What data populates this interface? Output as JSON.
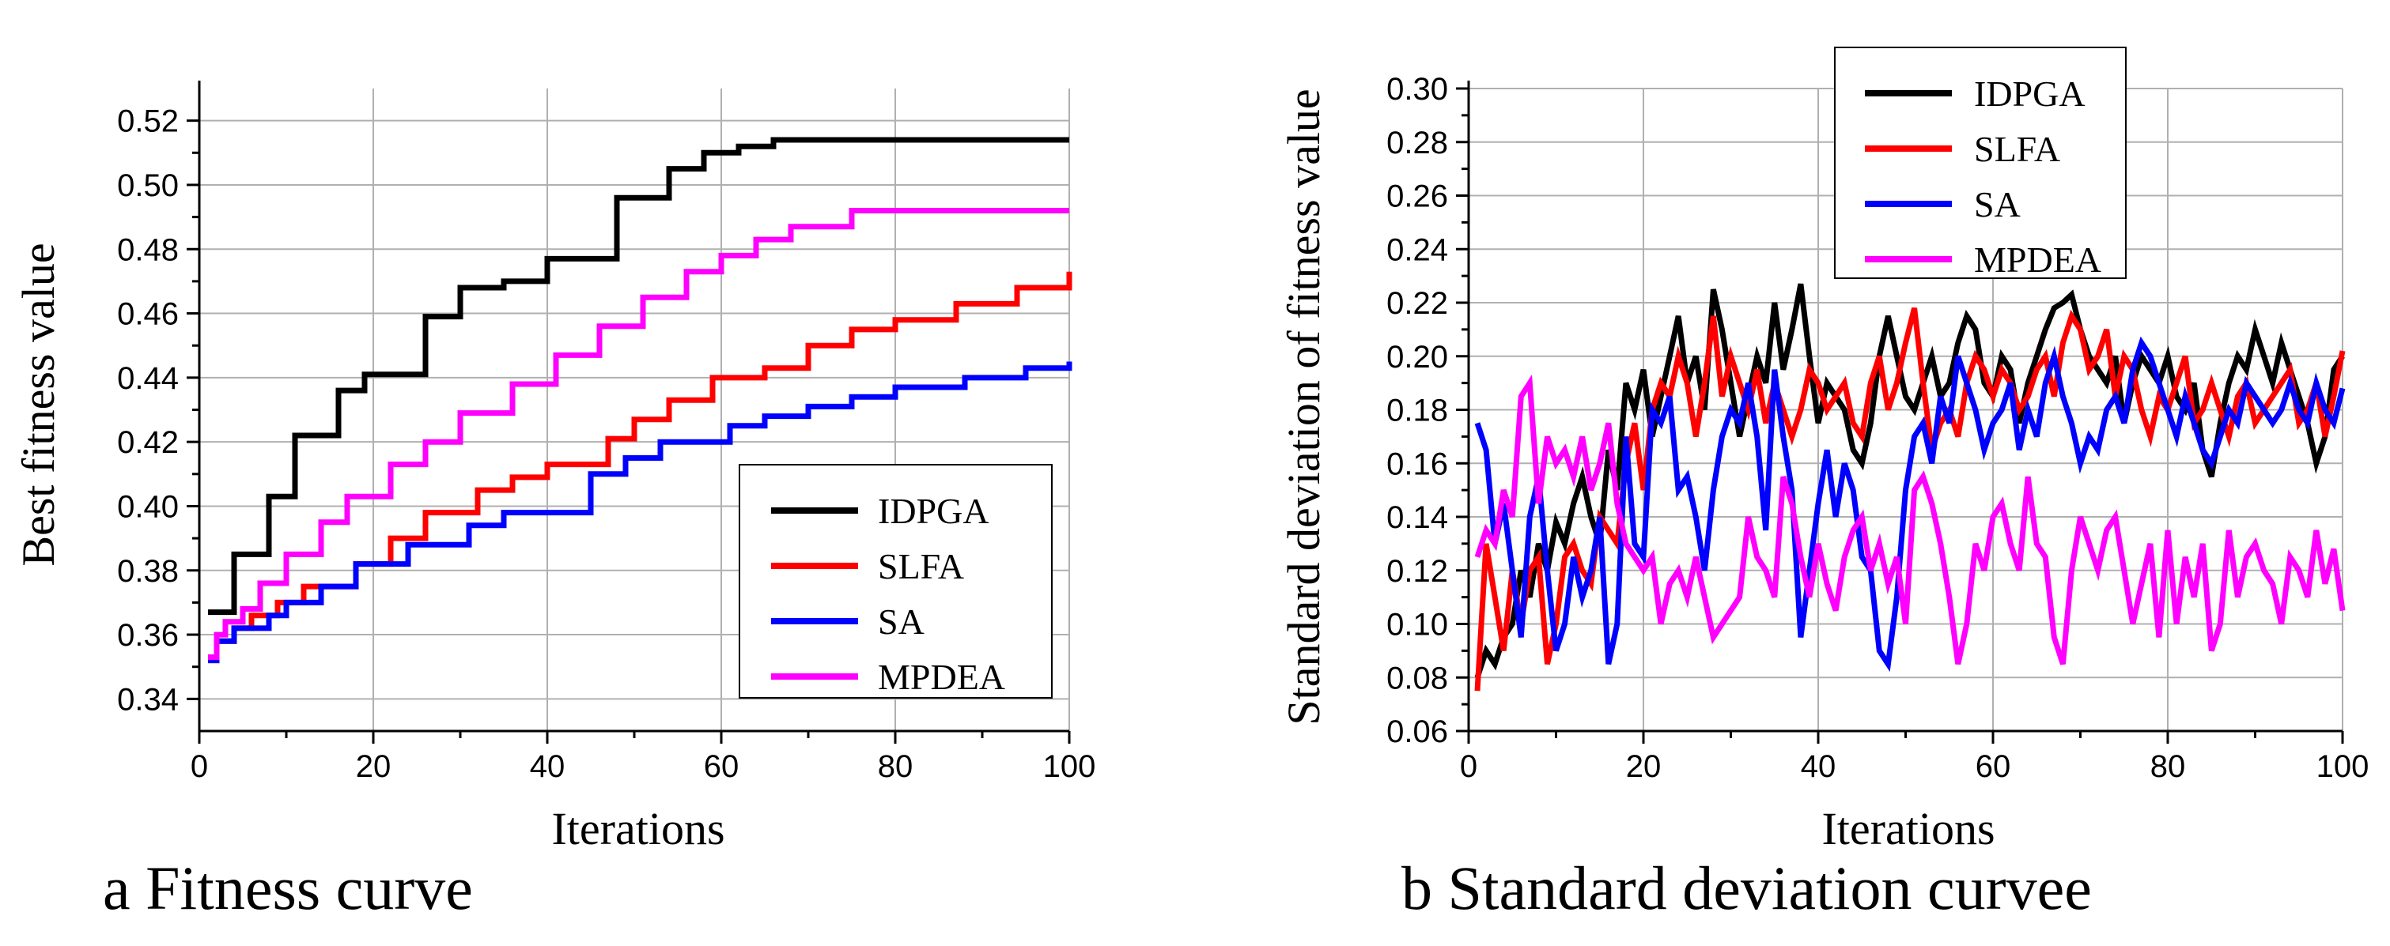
{
  "chart_data": [
    {
      "type": "line",
      "caption": "a Fitness curve",
      "xlabel": "Iterations",
      "ylabel": "Best fitness value",
      "xlim": [
        0,
        100
      ],
      "ylim": [
        0.33,
        0.53
      ],
      "xticks": [
        0,
        20,
        40,
        60,
        80,
        100
      ],
      "yticks": [
        0.34,
        0.36,
        0.38,
        0.4,
        0.42,
        0.44,
        0.46,
        0.48,
        0.5,
        0.52
      ],
      "grid": true,
      "legend_position": "bottom-right",
      "step": true,
      "series": [
        {
          "name": "IDPGA",
          "color": "#000000",
          "x": [
            1,
            4,
            8,
            11,
            16,
            19,
            26,
            30,
            35,
            40,
            48,
            54,
            58,
            62,
            66,
            100
          ],
          "y": [
            0.367,
            0.385,
            0.403,
            0.422,
            0.436,
            0.441,
            0.459,
            0.468,
            0.47,
            0.477,
            0.496,
            0.505,
            0.51,
            0.512,
            0.514,
            0.514
          ]
        },
        {
          "name": "SLFA",
          "color": "#ff0000",
          "x": [
            1,
            2,
            4,
            6,
            9,
            12,
            18,
            22,
            26,
            32,
            36,
            40,
            47,
            50,
            54,
            59,
            65,
            70,
            75,
            80,
            87,
            94,
            100
          ],
          "y": [
            0.352,
            0.358,
            0.362,
            0.366,
            0.37,
            0.375,
            0.382,
            0.39,
            0.398,
            0.405,
            0.409,
            0.413,
            0.421,
            0.427,
            0.433,
            0.44,
            0.443,
            0.45,
            0.455,
            0.458,
            0.463,
            0.468,
            0.473
          ]
        },
        {
          "name": "SA",
          "color": "#0000ff",
          "x": [
            1,
            2,
            4,
            8,
            10,
            14,
            18,
            24,
            31,
            35,
            45,
            49,
            53,
            61,
            65,
            70,
            75,
            80,
            88,
            95,
            100
          ],
          "y": [
            0.352,
            0.358,
            0.362,
            0.366,
            0.37,
            0.375,
            0.382,
            0.388,
            0.394,
            0.398,
            0.41,
            0.415,
            0.42,
            0.425,
            0.428,
            0.431,
            0.434,
            0.437,
            0.44,
            0.443,
            0.445
          ]
        },
        {
          "name": "MPDEA",
          "color": "#ff00ff",
          "x": [
            1,
            2,
            3,
            5,
            7,
            10,
            14,
            17,
            22,
            26,
            30,
            36,
            41,
            46,
            51,
            56,
            60,
            64,
            68,
            75,
            100
          ],
          "y": [
            0.353,
            0.36,
            0.364,
            0.368,
            0.376,
            0.385,
            0.395,
            0.403,
            0.413,
            0.42,
            0.429,
            0.438,
            0.447,
            0.456,
            0.465,
            0.473,
            0.478,
            0.483,
            0.487,
            0.492,
            0.492
          ]
        }
      ]
    },
    {
      "type": "line",
      "caption": "b Standard deviation curvee",
      "xlabel": "Iterations",
      "ylabel": "Standard deviation of fitness value",
      "xlim": [
        0,
        100
      ],
      "ylim": [
        0.06,
        0.3
      ],
      "xticks": [
        0,
        20,
        40,
        60,
        80,
        100
      ],
      "yticks": [
        0.06,
        0.08,
        0.1,
        0.12,
        0.14,
        0.16,
        0.18,
        0.2,
        0.22,
        0.24,
        0.26,
        0.28,
        0.3
      ],
      "grid": true,
      "legend_position": "top-left",
      "step": false,
      "series": [
        {
          "name": "IDPGA",
          "color": "#000000",
          "x": [
            1,
            2,
            3,
            4,
            5,
            6,
            7,
            8,
            9,
            10,
            11,
            12,
            13,
            14,
            15,
            16,
            17,
            18,
            19,
            20,
            21,
            22,
            23,
            24,
            25,
            26,
            27,
            28,
            29,
            30,
            31,
            32,
            33,
            34,
            35,
            36,
            37,
            38,
            39,
            40,
            41,
            42,
            43,
            44,
            45,
            46,
            47,
            48,
            49,
            50,
            51,
            52,
            53,
            54,
            55,
            56,
            57,
            58,
            59,
            60,
            61,
            62,
            63,
            64,
            65,
            66,
            67,
            68,
            69,
            70,
            71,
            72,
            73,
            74,
            75,
            76,
            77,
            78,
            79,
            80,
            81,
            82,
            83,
            84,
            85,
            86,
            87,
            88,
            89,
            90,
            91,
            92,
            93,
            94,
            95,
            96,
            97,
            98,
            99,
            100
          ],
          "y": [
            0.08,
            0.09,
            0.085,
            0.095,
            0.1,
            0.12,
            0.11,
            0.13,
            0.12,
            0.138,
            0.13,
            0.145,
            0.155,
            0.14,
            0.13,
            0.165,
            0.15,
            0.19,
            0.18,
            0.195,
            0.17,
            0.185,
            0.2,
            0.215,
            0.19,
            0.2,
            0.18,
            0.225,
            0.21,
            0.19,
            0.17,
            0.185,
            0.2,
            0.19,
            0.22,
            0.195,
            0.21,
            0.227,
            0.2,
            0.175,
            0.19,
            0.185,
            0.18,
            0.165,
            0.16,
            0.175,
            0.2,
            0.215,
            0.2,
            0.185,
            0.18,
            0.19,
            0.2,
            0.185,
            0.19,
            0.205,
            0.215,
            0.21,
            0.19,
            0.185,
            0.2,
            0.195,
            0.175,
            0.19,
            0.2,
            0.21,
            0.218,
            0.22,
            0.223,
            0.21,
            0.2,
            0.195,
            0.19,
            0.2,
            0.175,
            0.19,
            0.2,
            0.195,
            0.19,
            0.2,
            0.185,
            0.18,
            0.19,
            0.165,
            0.155,
            0.175,
            0.19,
            0.2,
            0.195,
            0.21,
            0.2,
            0.19,
            0.205,
            0.195,
            0.185,
            0.175,
            0.16,
            0.17,
            0.195,
            0.2
          ]
        },
        {
          "name": "SLFA",
          "color": "#ff0000",
          "x": [
            1,
            2,
            3,
            4,
            5,
            6,
            7,
            8,
            9,
            10,
            11,
            12,
            13,
            14,
            15,
            16,
            17,
            18,
            19,
            20,
            21,
            22,
            23,
            24,
            25,
            26,
            27,
            28,
            29,
            30,
            31,
            32,
            33,
            34,
            35,
            36,
            37,
            38,
            39,
            40,
            41,
            42,
            43,
            44,
            45,
            46,
            47,
            48,
            49,
            50,
            51,
            52,
            53,
            54,
            55,
            56,
            57,
            58,
            59,
            60,
            61,
            62,
            63,
            64,
            65,
            66,
            67,
            68,
            69,
            70,
            71,
            72,
            73,
            74,
            75,
            76,
            77,
            78,
            79,
            80,
            81,
            82,
            83,
            84,
            85,
            86,
            87,
            88,
            89,
            90,
            91,
            92,
            93,
            94,
            95,
            96,
            97,
            98,
            99,
            100
          ],
          "y": [
            0.075,
            0.13,
            0.11,
            0.09,
            0.12,
            0.1,
            0.12,
            0.125,
            0.085,
            0.1,
            0.125,
            0.13,
            0.12,
            0.115,
            0.14,
            0.135,
            0.13,
            0.16,
            0.175,
            0.15,
            0.18,
            0.19,
            0.185,
            0.2,
            0.19,
            0.17,
            0.19,
            0.215,
            0.185,
            0.2,
            0.19,
            0.18,
            0.195,
            0.175,
            0.19,
            0.18,
            0.17,
            0.18,
            0.195,
            0.19,
            0.18,
            0.185,
            0.19,
            0.175,
            0.17,
            0.19,
            0.2,
            0.18,
            0.19,
            0.205,
            0.218,
            0.19,
            0.165,
            0.175,
            0.18,
            0.17,
            0.19,
            0.2,
            0.195,
            0.185,
            0.195,
            0.19,
            0.18,
            0.185,
            0.195,
            0.2,
            0.185,
            0.205,
            0.215,
            0.21,
            0.195,
            0.2,
            0.21,
            0.185,
            0.2,
            0.195,
            0.18,
            0.17,
            0.185,
            0.18,
            0.19,
            0.2,
            0.175,
            0.18,
            0.19,
            0.18,
            0.17,
            0.185,
            0.19,
            0.175,
            0.18,
            0.185,
            0.19,
            0.195,
            0.175,
            0.18,
            0.19,
            0.17,
            0.185,
            0.202
          ]
        },
        {
          "name": "SA",
          "color": "#0000ff",
          "x": [
            1,
            2,
            3,
            4,
            5,
            6,
            7,
            8,
            9,
            10,
            11,
            12,
            13,
            14,
            15,
            16,
            17,
            18,
            19,
            20,
            21,
            22,
            23,
            24,
            25,
            26,
            27,
            28,
            29,
            30,
            31,
            32,
            33,
            34,
            35,
            36,
            37,
            38,
            39,
            40,
            41,
            42,
            43,
            44,
            45,
            46,
            47,
            48,
            49,
            50,
            51,
            52,
            53,
            54,
            55,
            56,
            57,
            58,
            59,
            60,
            61,
            62,
            63,
            64,
            65,
            66,
            67,
            68,
            69,
            70,
            71,
            72,
            73,
            74,
            75,
            76,
            77,
            78,
            79,
            80,
            81,
            82,
            83,
            84,
            85,
            86,
            87,
            88,
            89,
            90,
            91,
            92,
            93,
            94,
            95,
            96,
            97,
            98,
            99,
            100
          ],
          "y": [
            0.175,
            0.165,
            0.13,
            0.145,
            0.12,
            0.095,
            0.14,
            0.155,
            0.12,
            0.09,
            0.1,
            0.125,
            0.11,
            0.12,
            0.14,
            0.085,
            0.1,
            0.17,
            0.13,
            0.125,
            0.18,
            0.175,
            0.185,
            0.15,
            0.155,
            0.14,
            0.12,
            0.15,
            0.17,
            0.18,
            0.175,
            0.19,
            0.17,
            0.135,
            0.195,
            0.17,
            0.15,
            0.095,
            0.12,
            0.145,
            0.165,
            0.14,
            0.16,
            0.15,
            0.125,
            0.12,
            0.09,
            0.085,
            0.11,
            0.15,
            0.17,
            0.175,
            0.16,
            0.185,
            0.175,
            0.2,
            0.19,
            0.18,
            0.165,
            0.175,
            0.18,
            0.19,
            0.165,
            0.18,
            0.17,
            0.19,
            0.2,
            0.185,
            0.175,
            0.16,
            0.17,
            0.165,
            0.18,
            0.185,
            0.175,
            0.195,
            0.205,
            0.2,
            0.19,
            0.18,
            0.17,
            0.185,
            0.175,
            0.165,
            0.16,
            0.17,
            0.18,
            0.175,
            0.19,
            0.185,
            0.18,
            0.175,
            0.18,
            0.19,
            0.18,
            0.175,
            0.19,
            0.18,
            0.175,
            0.188
          ]
        },
        {
          "name": "MPDEA",
          "color": "#ff00ff",
          "x": [
            1,
            2,
            3,
            4,
            5,
            6,
            7,
            8,
            9,
            10,
            11,
            12,
            13,
            14,
            15,
            16,
            17,
            18,
            19,
            20,
            21,
            22,
            23,
            24,
            25,
            26,
            27,
            28,
            29,
            30,
            31,
            32,
            33,
            34,
            35,
            36,
            37,
            38,
            39,
            40,
            41,
            42,
            43,
            44,
            45,
            46,
            47,
            48,
            49,
            50,
            51,
            52,
            53,
            54,
            55,
            56,
            57,
            58,
            59,
            60,
            61,
            62,
            63,
            64,
            65,
            66,
            67,
            68,
            69,
            70,
            71,
            72,
            73,
            74,
            75,
            76,
            77,
            78,
            79,
            80,
            81,
            82,
            83,
            84,
            85,
            86,
            87,
            88,
            89,
            90,
            91,
            92,
            93,
            94,
            95,
            96,
            97,
            98,
            99,
            100
          ],
          "y": [
            0.125,
            0.135,
            0.13,
            0.15,
            0.14,
            0.185,
            0.19,
            0.145,
            0.17,
            0.16,
            0.165,
            0.155,
            0.17,
            0.15,
            0.16,
            0.175,
            0.145,
            0.13,
            0.125,
            0.12,
            0.125,
            0.1,
            0.115,
            0.12,
            0.11,
            0.125,
            0.11,
            0.095,
            0.1,
            0.105,
            0.11,
            0.14,
            0.125,
            0.12,
            0.11,
            0.155,
            0.145,
            0.125,
            0.11,
            0.13,
            0.115,
            0.105,
            0.125,
            0.135,
            0.14,
            0.12,
            0.13,
            0.115,
            0.125,
            0.1,
            0.15,
            0.155,
            0.145,
            0.13,
            0.11,
            0.085,
            0.1,
            0.13,
            0.12,
            0.14,
            0.145,
            0.13,
            0.12,
            0.155,
            0.13,
            0.125,
            0.095,
            0.085,
            0.12,
            0.14,
            0.13,
            0.12,
            0.135,
            0.14,
            0.12,
            0.1,
            0.115,
            0.13,
            0.095,
            0.135,
            0.1,
            0.125,
            0.11,
            0.13,
            0.09,
            0.1,
            0.135,
            0.11,
            0.125,
            0.13,
            0.12,
            0.115,
            0.1,
            0.125,
            0.12,
            0.11,
            0.135,
            0.115,
            0.128,
            0.105
          ]
        }
      ]
    }
  ]
}
